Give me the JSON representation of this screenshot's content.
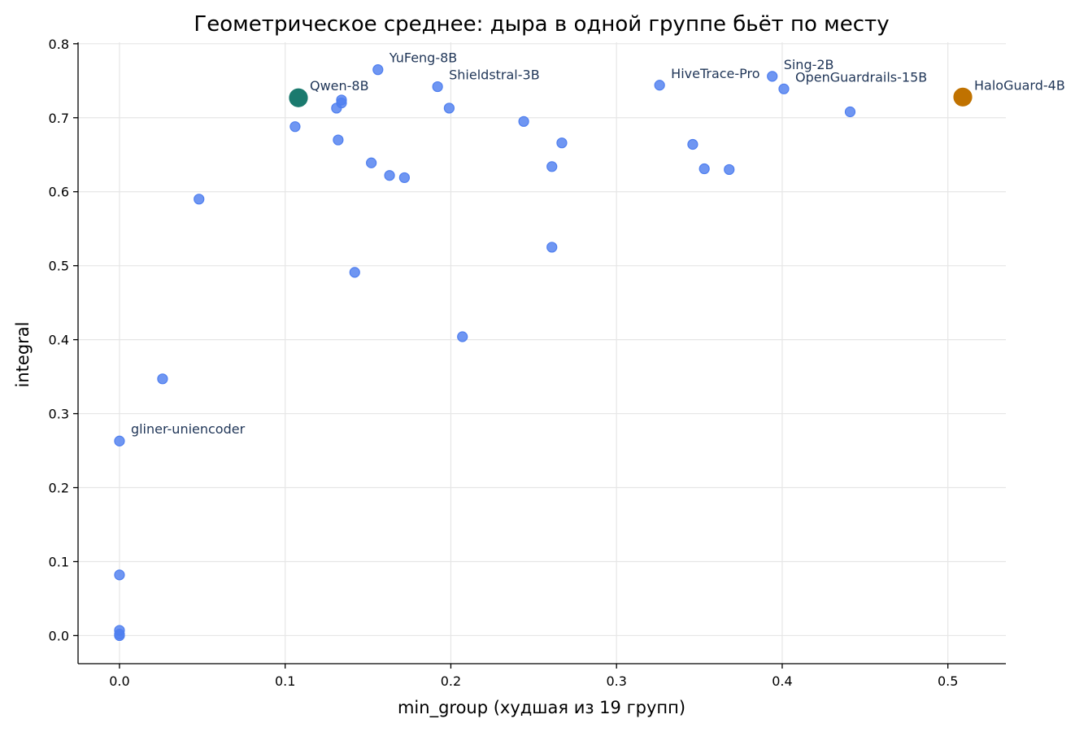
{
  "chart_data": {
    "type": "scatter",
    "title": "Геометрическое среднее: дыра в одной группе бьёт по месту",
    "xlabel": "min_group (худшая из 19 групп)",
    "ylabel": "integral",
    "xlim": [
      -0.025,
      0.535
    ],
    "ylim": [
      -0.038,
      0.802
    ],
    "xticks": [
      0.0,
      0.1,
      0.2,
      0.3,
      0.4,
      0.5
    ],
    "xtick_labels": [
      "0.0",
      "0.1",
      "0.2",
      "0.3",
      "0.4",
      "0.5"
    ],
    "yticks": [
      0.0,
      0.1,
      0.2,
      0.3,
      0.4,
      0.5,
      0.6,
      0.7,
      0.8
    ],
    "ytick_labels": [
      "0.0",
      "0.1",
      "0.2",
      "0.3",
      "0.4",
      "0.5",
      "0.6",
      "0.7",
      "0.8"
    ],
    "grid": true,
    "colors": {
      "default": "#4f7fef",
      "qwen": "#1a7a6e",
      "haloguard": "#c07200",
      "annotation": "#1f3557"
    },
    "points": [
      {
        "x": 0.0,
        "y": 0.0
      },
      {
        "x": 0.0,
        "y": 0.002
      },
      {
        "x": 0.0,
        "y": 0.007
      },
      {
        "x": 0.0,
        "y": 0.082
      },
      {
        "x": 0.0,
        "y": 0.263,
        "label": "gliner-uniencoder"
      },
      {
        "x": 0.026,
        "y": 0.347
      },
      {
        "x": 0.048,
        "y": 0.59
      },
      {
        "x": 0.106,
        "y": 0.688
      },
      {
        "x": 0.108,
        "y": 0.727,
        "label": "Qwen-8B",
        "highlight": "qwen"
      },
      {
        "x": 0.131,
        "y": 0.713
      },
      {
        "x": 0.132,
        "y": 0.67
      },
      {
        "x": 0.134,
        "y": 0.724
      },
      {
        "x": 0.134,
        "y": 0.72
      },
      {
        "x": 0.142,
        "y": 0.491
      },
      {
        "x": 0.152,
        "y": 0.639
      },
      {
        "x": 0.156,
        "y": 0.765,
        "label": "YuFeng-8B"
      },
      {
        "x": 0.163,
        "y": 0.622
      },
      {
        "x": 0.172,
        "y": 0.619
      },
      {
        "x": 0.192,
        "y": 0.742,
        "label": "Shieldstral-3B"
      },
      {
        "x": 0.199,
        "y": 0.713
      },
      {
        "x": 0.207,
        "y": 0.404
      },
      {
        "x": 0.244,
        "y": 0.695
      },
      {
        "x": 0.261,
        "y": 0.634
      },
      {
        "x": 0.261,
        "y": 0.525
      },
      {
        "x": 0.267,
        "y": 0.666
      },
      {
        "x": 0.326,
        "y": 0.744,
        "label": "HiveTrace-Pro"
      },
      {
        "x": 0.346,
        "y": 0.664
      },
      {
        "x": 0.353,
        "y": 0.631
      },
      {
        "x": 0.368,
        "y": 0.63
      },
      {
        "x": 0.394,
        "y": 0.756,
        "label": "Sing-2B"
      },
      {
        "x": 0.401,
        "y": 0.739,
        "label": "OpenGuardrails-15B"
      },
      {
        "x": 0.441,
        "y": 0.708
      },
      {
        "x": 0.509,
        "y": 0.728,
        "label": "HaloGuard-4B",
        "highlight": "haloguard"
      }
    ]
  }
}
